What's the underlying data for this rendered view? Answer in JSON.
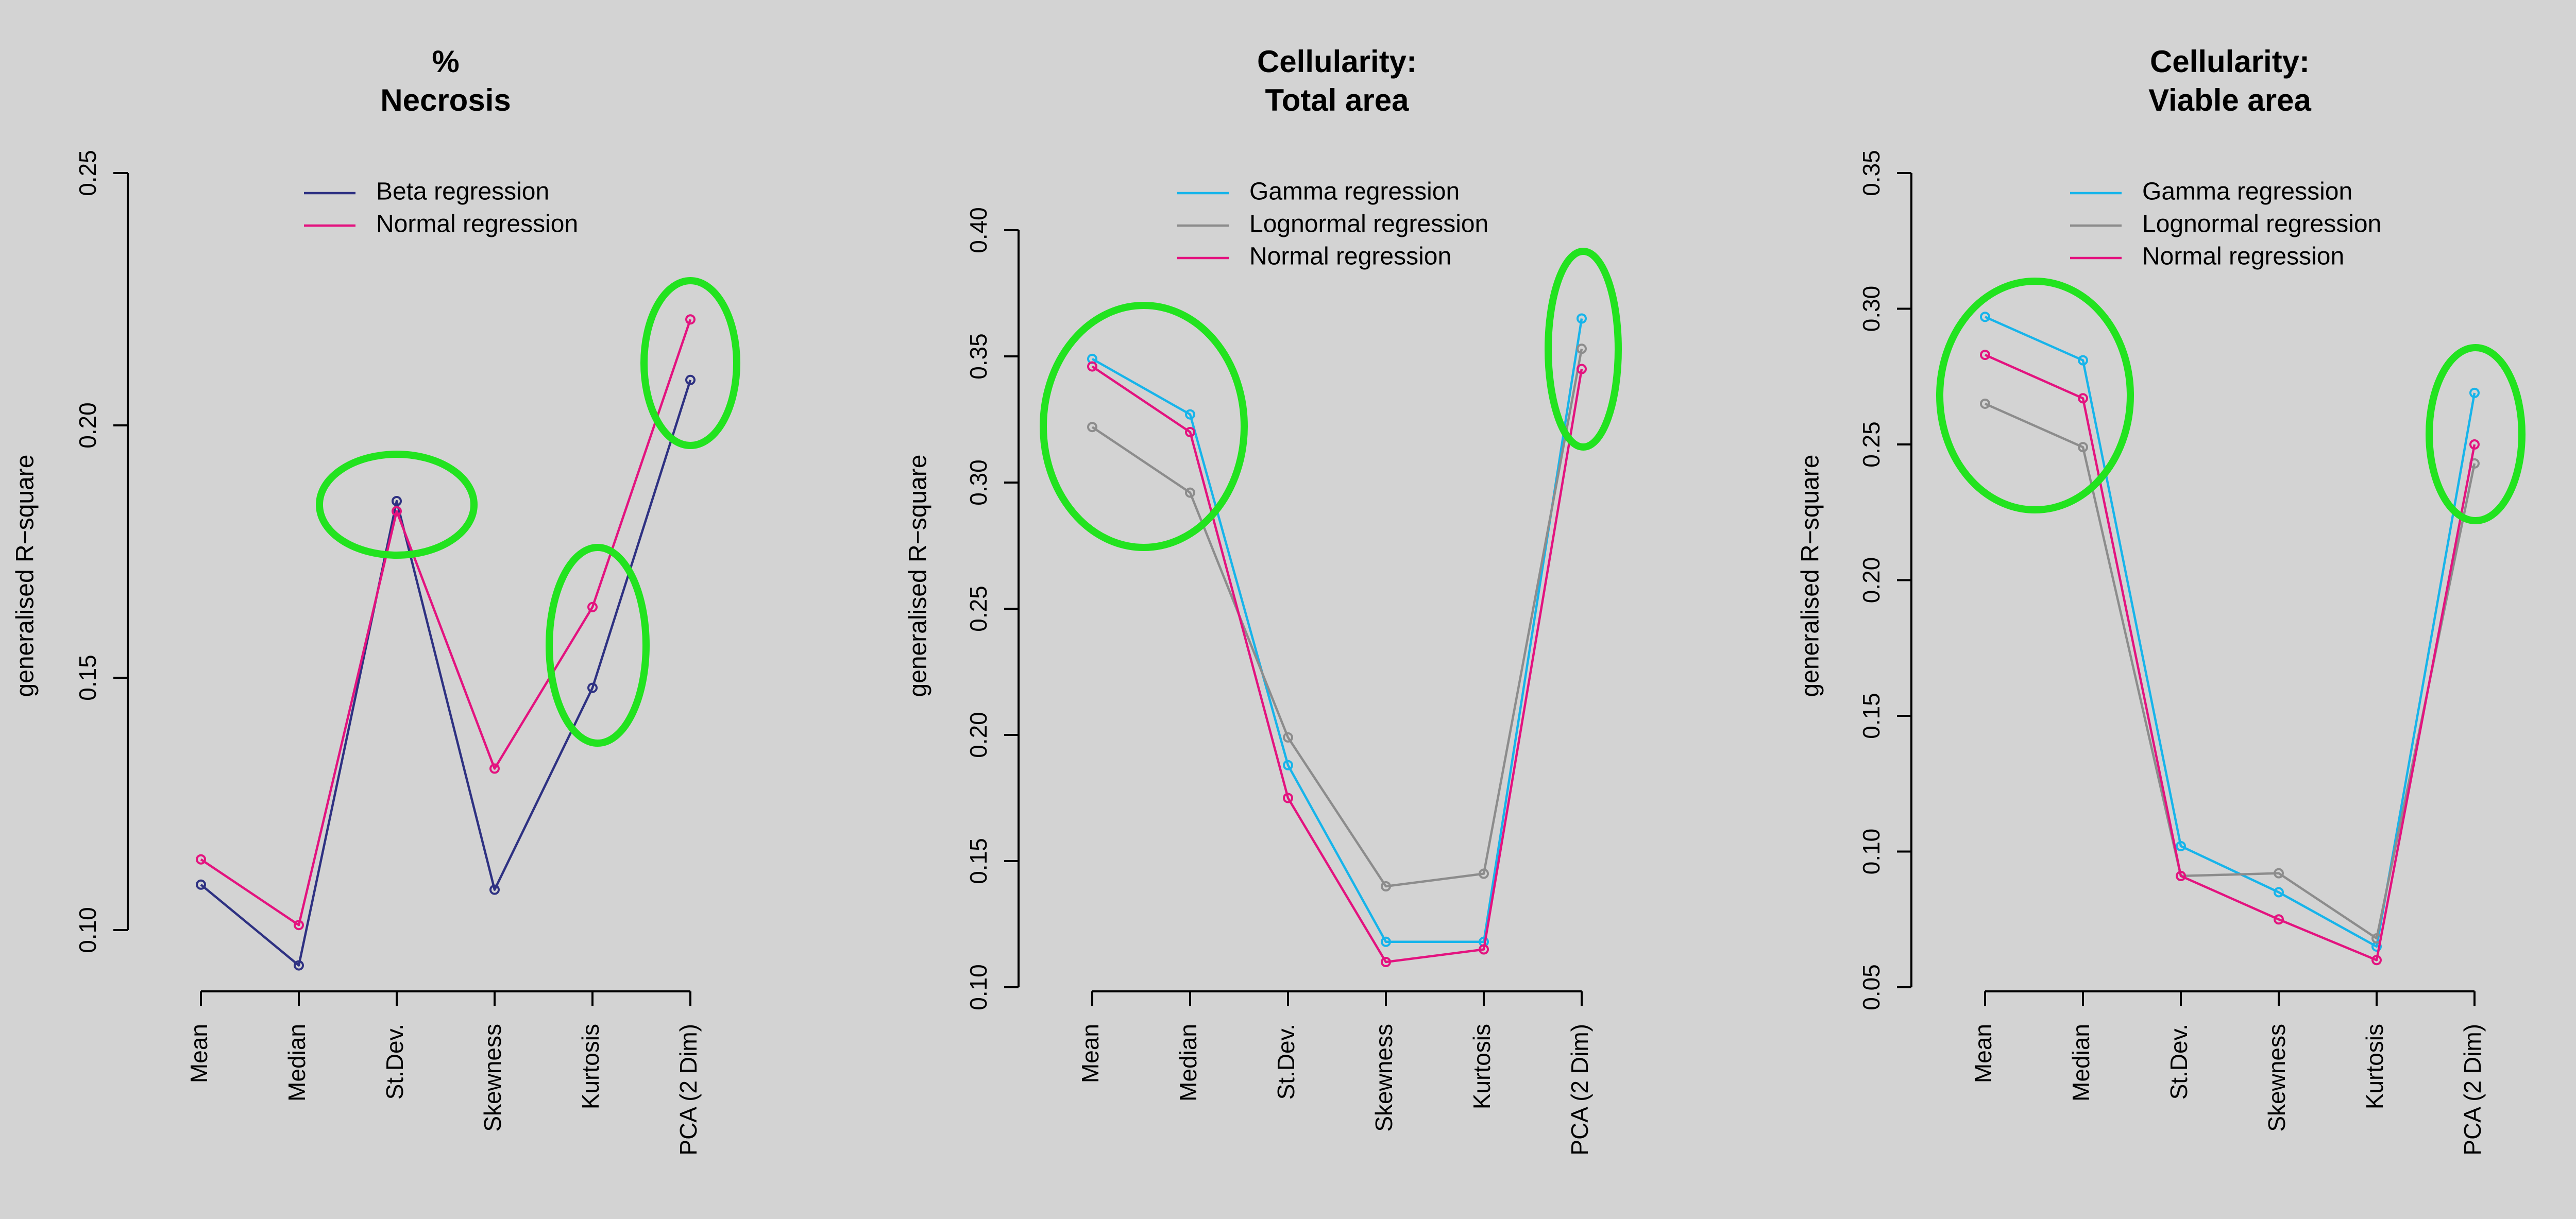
{
  "figure": {
    "background": "#d3d3d3",
    "highlight_color": "#22e31f"
  },
  "chart_data": [
    {
      "type": "line",
      "title": [
        "%",
        "Necrosis"
      ],
      "ylabel": "generalised R−square",
      "xlabel": "",
      "categories": [
        "Mean",
        "Median",
        "St.Dev.",
        "Skewness",
        "Kurtosis",
        "PCA (2 Dim)"
      ],
      "ylim": [
        0.1,
        0.25
      ],
      "yticks": [
        0.1,
        0.15,
        0.2,
        0.25
      ],
      "ytick_labels": [
        "0.10",
        "0.15",
        "0.20",
        "0.25"
      ],
      "grid": false,
      "legend_position": "top",
      "series": [
        {
          "name": "Beta regression",
          "color": "#2e3182",
          "values": [
            0.109,
            0.093,
            0.185,
            0.108,
            0.148,
            0.209
          ]
        },
        {
          "name": "Normal regression",
          "color": "#e3137f",
          "values": [
            0.114,
            0.101,
            0.183,
            0.132,
            0.164,
            0.221
          ]
        }
      ],
      "highlights": [
        {
          "from": 2,
          "to": 2,
          "note": "St.Dev."
        },
        {
          "from": 4,
          "to": 4,
          "note": "Kurtosis"
        },
        {
          "from": 5,
          "to": 5,
          "note": "PCA (2 Dim)"
        }
      ]
    },
    {
      "type": "line",
      "title": [
        "Cellularity:",
        "Total area"
      ],
      "ylabel": "generalised R−square",
      "xlabel": "",
      "categories": [
        "Mean",
        "Median",
        "St.Dev.",
        "Skewness",
        "Kurtosis",
        "PCA (2 Dim)"
      ],
      "ylim": [
        0.1,
        0.4
      ],
      "yticks": [
        0.1,
        0.15,
        0.2,
        0.25,
        0.3,
        0.35,
        0.4
      ],
      "ytick_labels": [
        "0.10",
        "0.15",
        "0.20",
        "0.25",
        "0.30",
        "0.35",
        "0.40"
      ],
      "grid": false,
      "legend_position": "top",
      "series": [
        {
          "name": "Gamma regression",
          "color": "#17b4ea",
          "values": [
            0.349,
            0.327,
            0.188,
            0.118,
            0.118,
            0.365
          ]
        },
        {
          "name": "Lognormal regression",
          "color": "#8c8c8c",
          "values": [
            0.322,
            0.296,
            0.199,
            0.14,
            0.145,
            0.353
          ]
        },
        {
          "name": "Normal regression",
          "color": "#e3137f",
          "values": [
            0.346,
            0.32,
            0.175,
            0.11,
            0.115,
            0.345
          ]
        }
      ],
      "highlights": [
        {
          "from": 0,
          "to": 1,
          "note": "Mean-Median"
        },
        {
          "from": 5,
          "to": 5,
          "note": "PCA (2 Dim)"
        }
      ]
    },
    {
      "type": "line",
      "title": [
        "Cellularity:",
        "Viable area"
      ],
      "ylabel": "generalised R−square",
      "xlabel": "",
      "categories": [
        "Mean",
        "Median",
        "St.Dev.",
        "Skewness",
        "Kurtosis",
        "PCA (2 Dim)"
      ],
      "ylim": [
        0.05,
        0.35
      ],
      "yticks": [
        0.05,
        0.1,
        0.15,
        0.2,
        0.25,
        0.3,
        0.35
      ],
      "ytick_labels": [
        "0.05",
        "0.10",
        "0.15",
        "0.20",
        "0.25",
        "0.30",
        "0.35"
      ],
      "grid": false,
      "legend_position": "top",
      "series": [
        {
          "name": "Gamma regression",
          "color": "#17b4ea",
          "values": [
            0.297,
            0.281,
            0.102,
            0.085,
            0.065,
            0.269
          ]
        },
        {
          "name": "Lognormal regression",
          "color": "#8c8c8c",
          "values": [
            0.265,
            0.249,
            0.091,
            0.092,
            0.068,
            0.243
          ]
        },
        {
          "name": "Normal regression",
          "color": "#e3137f",
          "values": [
            0.283,
            0.267,
            0.091,
            0.075,
            0.06,
            0.25
          ]
        }
      ],
      "highlights": [
        {
          "from": 0,
          "to": 1,
          "note": "Mean-Median"
        },
        {
          "from": 5,
          "to": 5,
          "note": "PCA (2 Dim)"
        }
      ]
    }
  ]
}
